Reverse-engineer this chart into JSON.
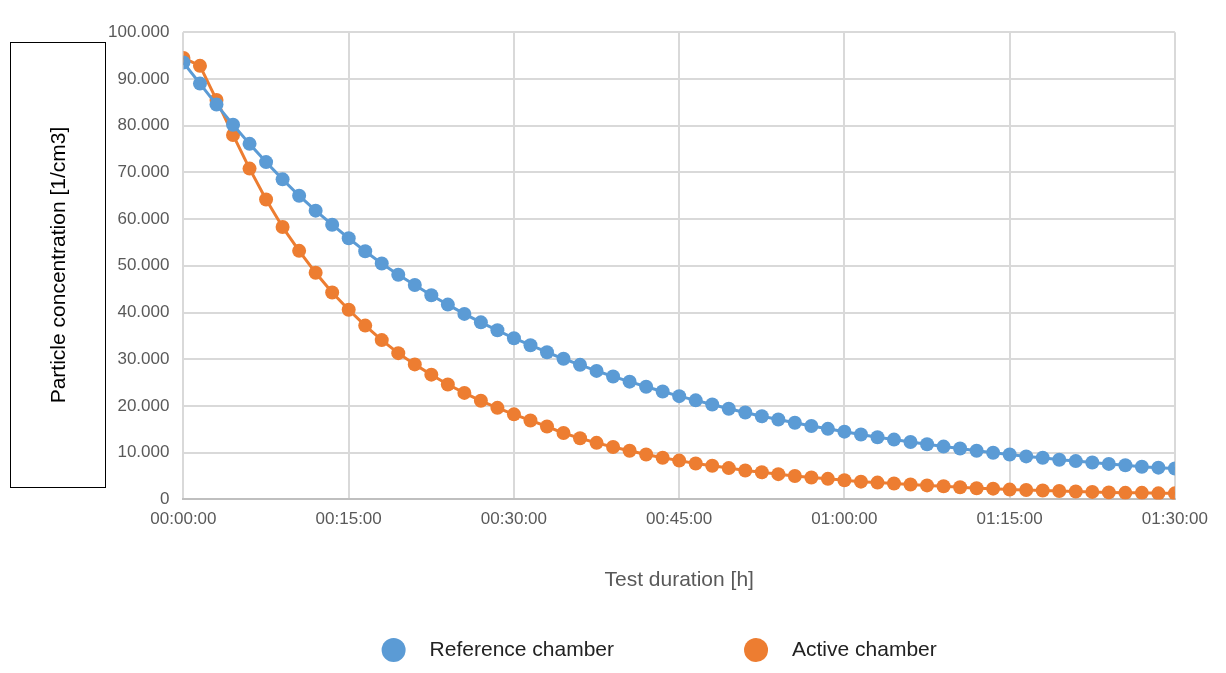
{
  "chart_data": {
    "type": "line",
    "xlabel": "Test duration [h]",
    "ylabel": "Particle concentration [1/cm3]",
    "x": [
      0,
      0.025,
      0.05,
      0.075,
      0.1,
      0.125,
      0.15,
      0.175,
      0.2,
      0.225,
      0.25,
      0.275,
      0.3,
      0.325,
      0.35,
      0.375,
      0.4,
      0.425,
      0.45,
      0.475,
      0.5,
      0.525,
      0.55,
      0.575,
      0.6,
      0.625,
      0.65,
      0.675,
      0.7,
      0.725,
      0.75,
      0.775,
      0.8,
      0.825,
      0.85,
      0.875,
      0.9,
      0.925,
      0.95,
      0.975,
      1,
      1.025,
      1.05,
      1.075,
      1.1,
      1.125,
      1.15,
      1.175,
      1.2,
      1.225,
      1.25,
      1.275,
      1.3,
      1.325,
      1.35,
      1.375,
      1.4,
      1.425,
      1.45,
      1.475,
      1.5
    ],
    "series": [
      {
        "name": "Reference chamber",
        "color": "#5b9bd5",
        "values": [
          93500,
          89000,
          84500,
          80200,
          76100,
          72200,
          68500,
          65000,
          61800,
          58800,
          55900,
          53100,
          50500,
          48100,
          45900,
          43700,
          41700,
          39700,
          37900,
          36200,
          34500,
          33000,
          31500,
          30100,
          28800,
          27500,
          26300,
          25200,
          24100,
          23100,
          22100,
          21200,
          20300,
          19400,
          18600,
          17800,
          17100,
          16400,
          15700,
          15100,
          14500,
          13900,
          13300,
          12800,
          12300,
          11800,
          11300,
          10900,
          10400,
          10000,
          9600,
          9200,
          8900,
          8500,
          8200,
          7900,
          7600,
          7300,
          7000,
          6800,
          6600
        ]
      },
      {
        "name": "Active chamber",
        "color": "#ed7d31",
        "values": [
          94500,
          92800,
          85500,
          78000,
          70800,
          64200,
          58300,
          53200,
          48500,
          44300,
          40600,
          37200,
          34100,
          31300,
          28900,
          26700,
          24600,
          22800,
          21100,
          19600,
          18200,
          16900,
          15600,
          14200,
          13100,
          12100,
          11200,
          10400,
          9600,
          8900,
          8300,
          7700,
          7200,
          6700,
          6200,
          5800,
          5400,
          5000,
          4700,
          4400,
          4100,
          3800,
          3600,
          3400,
          3200,
          3000,
          2800,
          2600,
          2400,
          2300,
          2100,
          2000,
          1900,
          1800,
          1700,
          1600,
          1500,
          1400,
          1400,
          1300,
          1300
        ]
      }
    ],
    "xlim": [
      0,
      1.5
    ],
    "xticks": [
      {
        "value": 0,
        "label": "00:00:00"
      },
      {
        "value": 0.25,
        "label": "00:15:00"
      },
      {
        "value": 0.5,
        "label": "00:30:00"
      },
      {
        "value": 0.75,
        "label": "00:45:00"
      },
      {
        "value": 1,
        "label": "01:00:00"
      },
      {
        "value": 1.25,
        "label": "01:15:00"
      },
      {
        "value": 1.5,
        "label": "01:30:00"
      }
    ],
    "ylim": [
      0,
      100000
    ],
    "yticks": [
      0,
      {
        "value": 10000,
        "label": "10.000"
      },
      {
        "value": 20000,
        "label": "20.000"
      },
      {
        "value": 30000,
        "label": "30.000"
      },
      {
        "value": 40000,
        "label": "40.000"
      },
      {
        "value": 50000,
        "label": "50.000"
      },
      {
        "value": 60000,
        "label": "60.000"
      },
      {
        "value": 70000,
        "label": "70.000"
      },
      {
        "value": 80000,
        "label": "80.000"
      },
      {
        "value": 90000,
        "label": "90.000"
      },
      {
        "value": 100000,
        "label": "100.000"
      }
    ],
    "grid": true,
    "legend": "bottom",
    "marker": "circle",
    "line_style": "solid"
  }
}
